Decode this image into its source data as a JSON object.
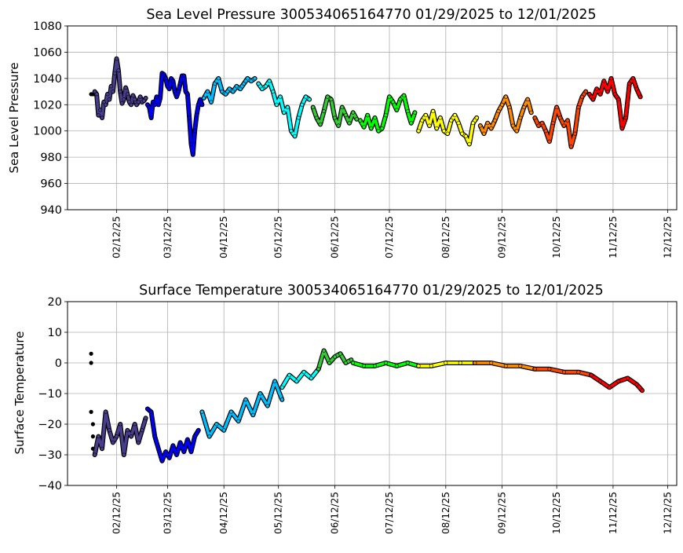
{
  "chart_data": [
    {
      "type": "scatter",
      "title": "Sea Level Pressure 300534065164770  01/29/2025 to 12/01/2025",
      "xlabel": "",
      "ylabel": "Sea Level Pressure",
      "ylim": [
        940,
        1080
      ],
      "yticks": [
        "940",
        "960",
        "980",
        "1000",
        "1020",
        "1040",
        "1060",
        "1080"
      ],
      "xlim": [
        "2025-01-16",
        "2025-12-17"
      ],
      "xticks": [
        "02/12/25",
        "03/12/25",
        "04/12/25",
        "05/12/25",
        "06/12/25",
        "07/12/25",
        "08/12/25",
        "09/12/25",
        "10/12/25",
        "11/12/25",
        "12/12/25"
      ],
      "grid": true,
      "series": [
        {
          "color": "#000000",
          "x": [
            "2025-01-29",
            "2025-01-30",
            "2025-01-31"
          ],
          "y": [
            1028,
            1028,
            1028
          ]
        },
        {
          "color": "#483d8b",
          "x": [
            "2025-01-31",
            "2025-02-01",
            "2025-02-02",
            "2025-02-03",
            "2025-02-04",
            "2025-02-05",
            "2025-02-06",
            "2025-02-07",
            "2025-02-08",
            "2025-02-09",
            "2025-02-10",
            "2025-02-11",
            "2025-02-12",
            "2025-02-13",
            "2025-02-14",
            "2025-02-15",
            "2025-02-16",
            "2025-02-17",
            "2025-02-18",
            "2025-02-19",
            "2025-02-20",
            "2025-02-21",
            "2025-02-22",
            "2025-02-23",
            "2025-02-24",
            "2025-02-25",
            "2025-02-26",
            "2025-02-27",
            "2025-02-28"
          ],
          "y": [
            1030,
            1028,
            1012,
            1016,
            1010,
            1022,
            1020,
            1028,
            1024,
            1034,
            1030,
            1044,
            1055,
            1046,
            1030,
            1021,
            1024,
            1033,
            1028,
            1022,
            1020,
            1027,
            1024,
            1020,
            1022,
            1026,
            1022,
            1023,
            1025
          ]
        },
        {
          "color": "#0000ff",
          "x": [
            "2025-03-01",
            "2025-03-02",
            "2025-03-03",
            "2025-03-04",
            "2025-03-05",
            "2025-03-06",
            "2025-03-07",
            "2025-03-08",
            "2025-03-09",
            "2025-03-10",
            "2025-03-11",
            "2025-03-12",
            "2025-03-13",
            "2025-03-14",
            "2025-03-15",
            "2025-03-16",
            "2025-03-17",
            "2025-03-18",
            "2025-03-19",
            "2025-03-20",
            "2025-03-21",
            "2025-03-22",
            "2025-03-23",
            "2025-03-24",
            "2025-03-25",
            "2025-03-26",
            "2025-03-27",
            "2025-03-28",
            "2025-03-29",
            "2025-03-30",
            "2025-03-31"
          ],
          "y": [
            1020,
            1018,
            1010,
            1022,
            1020,
            1026,
            1020,
            1025,
            1044,
            1043,
            1040,
            1034,
            1032,
            1040,
            1038,
            1030,
            1026,
            1030,
            1036,
            1042,
            1042,
            1030,
            1028,
            1010,
            990,
            982,
            1000,
            1012,
            1020,
            1024,
            1020
          ]
        },
        {
          "color": "#00bfff",
          "x": [
            "2025-04-01",
            "2025-04-03",
            "2025-04-05",
            "2025-04-07",
            "2025-04-09",
            "2025-04-11",
            "2025-04-13",
            "2025-04-15",
            "2025-04-17",
            "2025-04-19",
            "2025-04-21",
            "2025-04-23",
            "2025-04-25",
            "2025-04-27",
            "2025-04-29"
          ],
          "y": [
            1025,
            1030,
            1022,
            1036,
            1040,
            1030,
            1028,
            1032,
            1030,
            1034,
            1032,
            1036,
            1040,
            1038,
            1040
          ]
        },
        {
          "color": "#00ffff",
          "x": [
            "2025-05-01",
            "2025-05-03",
            "2025-05-05",
            "2025-05-07",
            "2025-05-09",
            "2025-05-11",
            "2025-05-13",
            "2025-05-15",
            "2025-05-17",
            "2025-05-19",
            "2025-05-21",
            "2025-05-23",
            "2025-05-25",
            "2025-05-27",
            "2025-05-29"
          ],
          "y": [
            1036,
            1032,
            1034,
            1038,
            1030,
            1020,
            1026,
            1014,
            1018,
            1000,
            996,
            1010,
            1020,
            1026,
            1024
          ]
        },
        {
          "color": "#32cd32",
          "x": [
            "2025-05-31",
            "2025-06-02",
            "2025-06-04",
            "2025-06-06",
            "2025-06-08",
            "2025-06-10",
            "2025-06-12",
            "2025-06-14",
            "2025-06-16",
            "2025-06-18",
            "2025-06-20",
            "2025-06-22",
            "2025-06-24"
          ],
          "y": [
            1018,
            1010,
            1005,
            1015,
            1026,
            1024,
            1010,
            1004,
            1018,
            1012,
            1006,
            1014,
            1009
          ]
        },
        {
          "color": "#00ff00",
          "x": [
            "2025-06-26",
            "2025-06-28",
            "2025-06-30",
            "2025-07-02",
            "2025-07-04",
            "2025-07-06",
            "2025-07-08",
            "2025-07-10",
            "2025-07-12",
            "2025-07-14",
            "2025-07-16",
            "2025-07-18",
            "2025-07-20",
            "2025-07-22",
            "2025-07-24",
            "2025-07-26"
          ],
          "y": [
            1008,
            1003,
            1012,
            1002,
            1010,
            1000,
            1002,
            1012,
            1026,
            1022,
            1016,
            1024,
            1027,
            1015,
            1006,
            1014
          ]
        },
        {
          "color": "#ffff00",
          "x": [
            "2025-07-28",
            "2025-07-30",
            "2025-08-01",
            "2025-08-03",
            "2025-08-05",
            "2025-08-07",
            "2025-08-09",
            "2025-08-11",
            "2025-08-13",
            "2025-08-15",
            "2025-08-17",
            "2025-08-19",
            "2025-08-21",
            "2025-08-23",
            "2025-08-25",
            "2025-08-27",
            "2025-08-29"
          ],
          "y": [
            1000,
            1008,
            1012,
            1004,
            1015,
            1002,
            1010,
            1000,
            998,
            1008,
            1012,
            1006,
            998,
            996,
            990,
            1006,
            1010
          ]
        },
        {
          "color": "#ff8c00",
          "x": [
            "2025-08-31",
            "2025-09-02",
            "2025-09-04",
            "2025-09-06",
            "2025-09-08",
            "2025-09-10",
            "2025-09-12",
            "2025-09-14",
            "2025-09-16",
            "2025-09-18",
            "2025-09-20",
            "2025-09-22",
            "2025-09-24",
            "2025-09-26",
            "2025-09-28"
          ],
          "y": [
            1004,
            998,
            1006,
            1002,
            1008,
            1015,
            1020,
            1026,
            1018,
            1004,
            1000,
            1010,
            1018,
            1024,
            1014
          ]
        },
        {
          "color": "#ff4500",
          "x": [
            "2025-09-30",
            "2025-10-02",
            "2025-10-04",
            "2025-10-06",
            "2025-10-08",
            "2025-10-10",
            "2025-10-12",
            "2025-10-14",
            "2025-10-16",
            "2025-10-18",
            "2025-10-20",
            "2025-10-22",
            "2025-10-24",
            "2025-10-26",
            "2025-10-28"
          ],
          "y": [
            1010,
            1004,
            1006,
            1000,
            992,
            1006,
            1018,
            1010,
            1004,
            1008,
            988,
            998,
            1018,
            1026,
            1030
          ]
        },
        {
          "color": "#ff0000",
          "x": [
            "2025-10-30",
            "2025-11-01",
            "2025-11-03",
            "2025-11-05",
            "2025-11-07",
            "2025-11-09",
            "2025-11-11",
            "2025-11-13",
            "2025-11-15",
            "2025-11-17",
            "2025-11-19",
            "2025-11-21",
            "2025-11-23",
            "2025-11-25",
            "2025-11-27"
          ],
          "y": [
            1028,
            1024,
            1032,
            1028,
            1038,
            1030,
            1040,
            1028,
            1024,
            1002,
            1010,
            1036,
            1040,
            1032,
            1026
          ]
        }
      ]
    },
    {
      "type": "scatter",
      "title": "Surface Temperature 300534065164770  01/29/2025 to 12/01/2025",
      "xlabel": "",
      "ylabel": "Surface Temperature",
      "ylim": [
        -40,
        20
      ],
      "yticks": [
        "−40",
        "−30",
        "−20",
        "−10",
        "0",
        "10",
        "20"
      ],
      "xlim": [
        "2025-01-16",
        "2025-12-17"
      ],
      "xticks": [
        "02/12/25",
        "03/12/25",
        "04/12/25",
        "05/12/25",
        "06/12/25",
        "07/12/25",
        "08/12/25",
        "09/12/25",
        "10/12/25",
        "11/12/25",
        "12/12/25"
      ],
      "grid": true,
      "series": [
        {
          "color": "#000000",
          "x": [
            "2025-01-29",
            "2025-01-29",
            "2025-01-29",
            "2025-01-30",
            "2025-01-30",
            "2025-01-30",
            "2025-01-31"
          ],
          "y": [
            3,
            0,
            -16,
            -20,
            -24,
            -28,
            -30
          ]
        },
        {
          "color": "#483d8b",
          "x": [
            "2025-01-31",
            "2025-02-02",
            "2025-02-04",
            "2025-02-06",
            "2025-02-08",
            "2025-02-10",
            "2025-02-12",
            "2025-02-14",
            "2025-02-16",
            "2025-02-18",
            "2025-02-20",
            "2025-02-22",
            "2025-02-24",
            "2025-02-26",
            "2025-02-28"
          ],
          "y": [
            -30,
            -24,
            -28,
            -16,
            -22,
            -26,
            -24,
            -20,
            -30,
            -22,
            -24,
            -20,
            -26,
            -22,
            -18
          ]
        },
        {
          "color": "#0000ff",
          "x": [
            "2025-03-01",
            "2025-03-03",
            "2025-03-05",
            "2025-03-07",
            "2025-03-09",
            "2025-03-11",
            "2025-03-13",
            "2025-03-15",
            "2025-03-17",
            "2025-03-19",
            "2025-03-21",
            "2025-03-23",
            "2025-03-25",
            "2025-03-27",
            "2025-03-29"
          ],
          "y": [
            -15,
            -16,
            -24,
            -28,
            -32,
            -29,
            -31,
            -27,
            -30,
            -26,
            -29,
            -25,
            -29,
            -24,
            -22
          ]
        },
        {
          "color": "#00bfff",
          "x": [
            "2025-03-31",
            "2025-04-04",
            "2025-04-08",
            "2025-04-12",
            "2025-04-16",
            "2025-04-20",
            "2025-04-24",
            "2025-04-28",
            "2025-05-02",
            "2025-05-06",
            "2025-05-10",
            "2025-05-14"
          ],
          "y": [
            -16,
            -24,
            -20,
            -22,
            -16,
            -19,
            -12,
            -17,
            -10,
            -14,
            -6,
            -12
          ]
        },
        {
          "color": "#00ffff",
          "x": [
            "2025-05-14",
            "2025-05-18",
            "2025-05-22",
            "2025-05-26",
            "2025-05-30",
            "2025-06-03"
          ],
          "y": [
            -8,
            -4,
            -6,
            -3,
            -5,
            -2
          ]
        },
        {
          "color": "#32cd32",
          "x": [
            "2025-06-03",
            "2025-06-06",
            "2025-06-09",
            "2025-06-12",
            "2025-06-15",
            "2025-06-18",
            "2025-06-21"
          ],
          "y": [
            -2,
            4,
            0,
            2,
            3,
            0,
            1
          ]
        },
        {
          "color": "#00ff00",
          "x": [
            "2025-06-22",
            "2025-06-28",
            "2025-07-04",
            "2025-07-10",
            "2025-07-16",
            "2025-07-22",
            "2025-07-28"
          ],
          "y": [
            0,
            -1,
            -1,
            0,
            -1,
            0,
            -1
          ]
        },
        {
          "color": "#ffff00",
          "x": [
            "2025-07-28",
            "2025-08-04",
            "2025-08-12",
            "2025-08-20",
            "2025-08-28"
          ],
          "y": [
            -1,
            -1,
            0,
            0,
            0
          ]
        },
        {
          "color": "#ff8c00",
          "x": [
            "2025-08-28",
            "2025-09-06",
            "2025-09-14",
            "2025-09-22",
            "2025-09-30"
          ],
          "y": [
            0,
            0,
            -1,
            -1,
            -2
          ]
        },
        {
          "color": "#ff4500",
          "x": [
            "2025-09-30",
            "2025-10-08",
            "2025-10-16",
            "2025-10-24",
            "2025-10-31"
          ],
          "y": [
            -2,
            -2,
            -3,
            -3,
            -4
          ]
        },
        {
          "color": "#ff0000",
          "x": [
            "2025-10-31",
            "2025-11-05",
            "2025-11-10",
            "2025-11-15",
            "2025-11-20",
            "2025-11-25",
            "2025-11-28"
          ],
          "y": [
            -4,
            -6,
            -8,
            -6,
            -5,
            -7,
            -9
          ]
        }
      ]
    }
  ]
}
